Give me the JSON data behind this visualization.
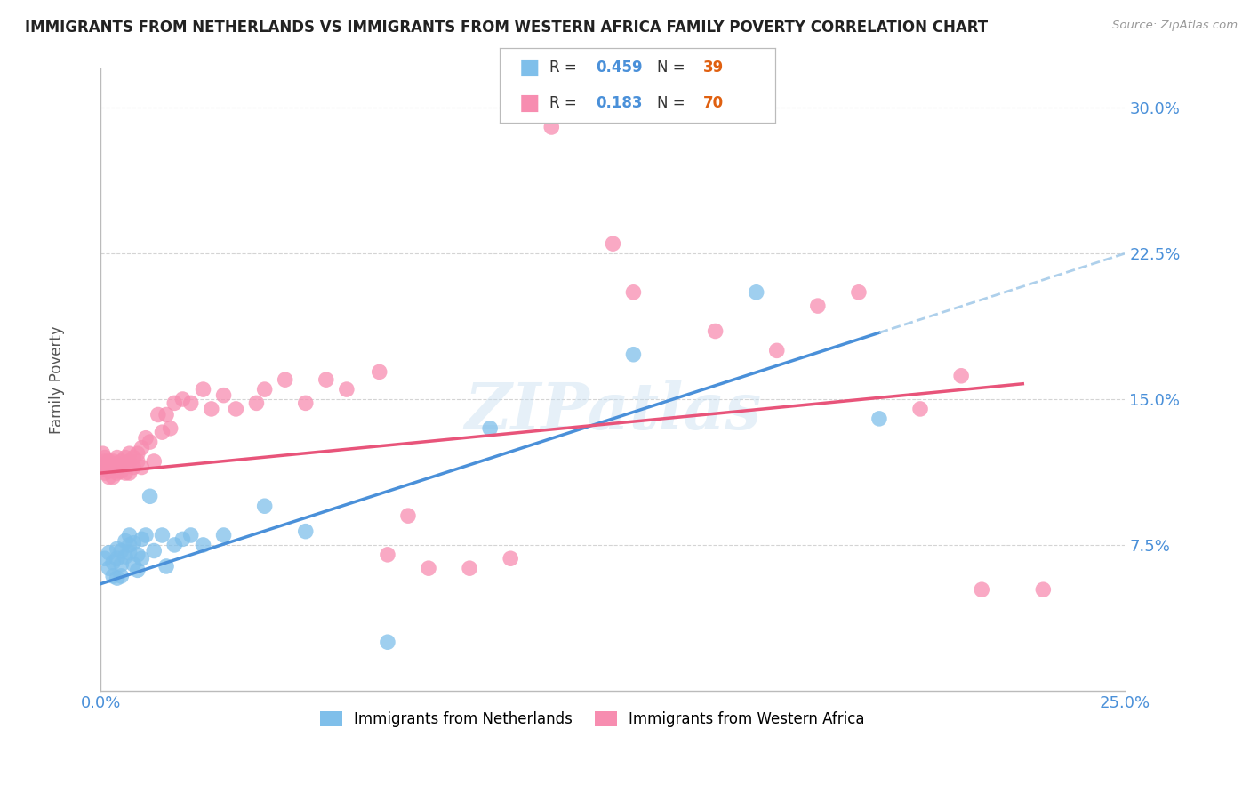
{
  "title": "IMMIGRANTS FROM NETHERLANDS VS IMMIGRANTS FROM WESTERN AFRICA FAMILY POVERTY CORRELATION CHART",
  "source": "Source: ZipAtlas.com",
  "ylabel": "Family Poverty",
  "xlim": [
    0,
    0.25
  ],
  "ylim": [
    0.0,
    0.32
  ],
  "yticks": [
    0.075,
    0.15,
    0.225,
    0.3
  ],
  "ytick_labels": [
    "7.5%",
    "15.0%",
    "22.5%",
    "30.0%"
  ],
  "xticks": [
    0.0,
    0.05,
    0.1,
    0.15,
    0.2,
    0.25
  ],
  "xtick_labels": [
    "0.0%",
    "",
    "",
    "",
    "",
    "25.0%"
  ],
  "blue_color": "#7fbfea",
  "pink_color": "#f78db0",
  "blue_line_color": "#4a90d9",
  "pink_line_color": "#e8547a",
  "axis_color": "#4a90d9",
  "grid_color": "#d0d0d0",
  "background_color": "#ffffff",
  "legend_r1_val": "0.459",
  "legend_n1_val": "39",
  "legend_r2_val": "0.183",
  "legend_n2_val": "70",
  "blue_line_start_y": 0.055,
  "blue_line_end_y": 0.225,
  "pink_line_start_y": 0.112,
  "pink_line_end_y": 0.163,
  "blue_scatter_x": [
    0.001,
    0.002,
    0.002,
    0.003,
    0.003,
    0.004,
    0.004,
    0.004,
    0.005,
    0.005,
    0.005,
    0.006,
    0.006,
    0.007,
    0.007,
    0.007,
    0.008,
    0.008,
    0.009,
    0.009,
    0.01,
    0.01,
    0.011,
    0.012,
    0.013,
    0.015,
    0.016,
    0.018,
    0.02,
    0.022,
    0.025,
    0.03,
    0.04,
    0.05,
    0.07,
    0.095,
    0.13,
    0.16,
    0.19
  ],
  "blue_scatter_y": [
    0.068,
    0.063,
    0.071,
    0.059,
    0.066,
    0.068,
    0.058,
    0.073,
    0.072,
    0.065,
    0.059,
    0.077,
    0.069,
    0.075,
    0.071,
    0.08,
    0.076,
    0.065,
    0.07,
    0.062,
    0.078,
    0.068,
    0.08,
    0.1,
    0.072,
    0.08,
    0.064,
    0.075,
    0.078,
    0.08,
    0.075,
    0.08,
    0.095,
    0.082,
    0.025,
    0.135,
    0.173,
    0.205,
    0.14
  ],
  "pink_scatter_x": [
    0.0005,
    0.0005,
    0.001,
    0.001,
    0.001,
    0.001,
    0.002,
    0.002,
    0.002,
    0.002,
    0.003,
    0.003,
    0.003,
    0.003,
    0.004,
    0.004,
    0.004,
    0.004,
    0.005,
    0.005,
    0.005,
    0.006,
    0.006,
    0.006,
    0.007,
    0.007,
    0.007,
    0.008,
    0.008,
    0.009,
    0.009,
    0.01,
    0.01,
    0.011,
    0.012,
    0.013,
    0.014,
    0.015,
    0.016,
    0.017,
    0.018,
    0.02,
    0.022,
    0.025,
    0.027,
    0.03,
    0.033,
    0.038,
    0.04,
    0.045,
    0.05,
    0.055,
    0.06,
    0.068,
    0.07,
    0.075,
    0.08,
    0.09,
    0.1,
    0.11,
    0.125,
    0.13,
    0.15,
    0.165,
    0.175,
    0.185,
    0.2,
    0.21,
    0.215,
    0.23
  ],
  "pink_scatter_y": [
    0.115,
    0.122,
    0.114,
    0.118,
    0.112,
    0.12,
    0.116,
    0.113,
    0.118,
    0.11,
    0.115,
    0.118,
    0.11,
    0.115,
    0.113,
    0.117,
    0.12,
    0.112,
    0.115,
    0.118,
    0.113,
    0.12,
    0.116,
    0.112,
    0.122,
    0.118,
    0.112,
    0.115,
    0.12,
    0.118,
    0.122,
    0.125,
    0.115,
    0.13,
    0.128,
    0.118,
    0.142,
    0.133,
    0.142,
    0.135,
    0.148,
    0.15,
    0.148,
    0.155,
    0.145,
    0.152,
    0.145,
    0.148,
    0.155,
    0.16,
    0.148,
    0.16,
    0.155,
    0.164,
    0.07,
    0.09,
    0.063,
    0.063,
    0.068,
    0.29,
    0.23,
    0.205,
    0.185,
    0.175,
    0.198,
    0.205,
    0.145,
    0.162,
    0.052,
    0.052
  ]
}
